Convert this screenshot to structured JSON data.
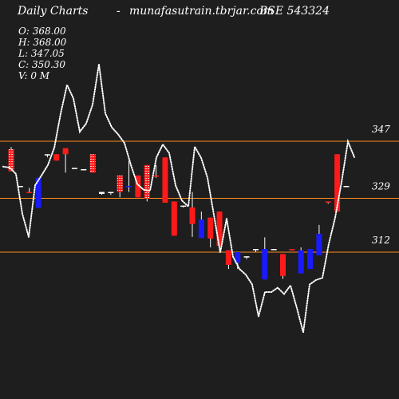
{
  "header": {
    "title": "Daily Charts",
    "dash": "-",
    "site": "munafasutrain.tbrjar.com",
    "symbol": "BSE 543324"
  },
  "ohlc": {
    "open": "O: 368.00",
    "high": "H: 368.00",
    "low": "L: 347.05",
    "close": "C: 350.30",
    "volume": "V: 0  M"
  },
  "colors": {
    "background": "#1e1e1e",
    "level_line": "#ff8c1a",
    "up_candle": "#1a1aff",
    "down_candle": "#ff1a1a",
    "neutral_candle": "#ffffff",
    "overlay_line": "#ffffff"
  },
  "chart_data": {
    "type": "candlestick",
    "levels": [
      {
        "value": 347,
        "label": "347"
      },
      {
        "value": 329,
        "label": "329"
      },
      {
        "value": 312,
        "label": "312"
      }
    ],
    "candles": [
      {
        "o": 344.5,
        "h": 345.2,
        "l": 337.6,
        "c": 337.6,
        "color": "down",
        "hatched": true
      },
      {
        "o": 332.9,
        "h": 332.9,
        "l": 332.9,
        "c": 332.9,
        "color": "neutral"
      },
      {
        "o": 331.0,
        "h": 332.3,
        "l": 330.7,
        "c": 330.7,
        "color": "down"
      },
      {
        "o": 335.5,
        "h": 335.5,
        "l": 326.0,
        "c": 326.0,
        "color": "up"
      },
      {
        "o": 342.9,
        "h": 342.9,
        "l": 341.9,
        "c": 342.9,
        "color": "neutral"
      },
      {
        "o": 342.9,
        "h": 342.9,
        "l": 340.9,
        "c": 340.9,
        "color": "down"
      },
      {
        "o": 344.8,
        "h": 344.8,
        "l": 337.1,
        "c": 342.9,
        "color": "down"
      },
      {
        "o": 338.6,
        "h": 338.6,
        "l": 338.6,
        "c": 338.6,
        "color": "neutral"
      },
      {
        "o": 338.2,
        "h": 338.2,
        "l": 338.2,
        "c": 338.2,
        "color": "neutral"
      },
      {
        "o": 342.9,
        "h": 342.9,
        "l": 337.1,
        "c": 337.1,
        "color": "down",
        "hatched": true
      },
      {
        "o": 331.0,
        "h": 331.0,
        "l": 330.1,
        "c": 330.4,
        "color": "neutral"
      },
      {
        "o": 331.0,
        "h": 331.0,
        "l": 330.1,
        "c": 331.0,
        "color": "neutral"
      },
      {
        "o": 336.2,
        "h": 336.2,
        "l": 329.3,
        "c": 331.0,
        "color": "down",
        "hatched": true
      },
      {
        "o": 332.9,
        "h": 340.9,
        "l": 331.0,
        "c": 332.9,
        "color": "up"
      },
      {
        "o": 336.2,
        "h": 336.2,
        "l": 329.3,
        "c": 329.3,
        "color": "down"
      },
      {
        "o": 339.5,
        "h": 339.5,
        "l": 328.0,
        "c": 328.9,
        "color": "down",
        "hatched": true
      },
      {
        "o": 336.2,
        "h": 339.5,
        "l": 335.5,
        "c": 336.2,
        "color": "down"
      },
      {
        "o": 341.9,
        "h": 341.9,
        "l": 327.6,
        "c": 327.6,
        "color": "down"
      },
      {
        "o": 328.0,
        "h": 328.0,
        "l": 317.2,
        "c": 317.2,
        "color": "down"
      },
      {
        "o": 326.7,
        "h": 326.7,
        "l": 326.1,
        "c": 326.7,
        "color": "neutral"
      },
      {
        "o": 326.1,
        "h": 331.0,
        "l": 316.8,
        "c": 320.9,
        "color": "down"
      },
      {
        "o": 316.5,
        "h": 324.8,
        "l": 316.5,
        "c": 322.3,
        "color": "up"
      },
      {
        "o": 322.9,
        "h": 322.9,
        "l": 313.5,
        "c": 316.3,
        "color": "down"
      },
      {
        "o": 324.8,
        "h": 324.8,
        "l": 314.0,
        "c": 314.0,
        "color": "down"
      },
      {
        "o": 312.6,
        "h": 312.6,
        "l": 306.7,
        "c": 308.0,
        "color": "down"
      },
      {
        "o": 308.6,
        "h": 312.0,
        "l": 306.7,
        "c": 312.0,
        "color": "up"
      },
      {
        "o": 310.7,
        "h": 310.7,
        "l": 309.8,
        "c": 310.5,
        "color": "neutral"
      },
      {
        "o": 313.0,
        "h": 313.0,
        "l": 312.0,
        "c": 313.0,
        "color": "neutral"
      },
      {
        "o": 303.4,
        "h": 316.7,
        "l": 303.4,
        "c": 313.0,
        "color": "up"
      },
      {
        "o": 313.0,
        "h": 313.0,
        "l": 313.0,
        "c": 313.0,
        "color": "neutral"
      },
      {
        "o": 311.4,
        "h": 311.4,
        "l": 303.6,
        "c": 304.5,
        "color": "down"
      },
      {
        "o": 313.0,
        "h": 313.0,
        "l": 312.6,
        "c": 312.6,
        "color": "down"
      },
      {
        "o": 305.3,
        "h": 313.5,
        "l": 305.3,
        "c": 312.6,
        "color": "up"
      },
      {
        "o": 306.7,
        "h": 313.0,
        "l": 306.7,
        "c": 313.0,
        "color": "up"
      },
      {
        "o": 311.0,
        "h": 320.6,
        "l": 311.0,
        "c": 317.8,
        "color": "up"
      },
      {
        "o": 328.0,
        "h": 328.0,
        "l": 327.3,
        "c": 328.0,
        "color": "down"
      },
      {
        "o": 342.9,
        "h": 342.9,
        "l": 324.8,
        "c": 324.8,
        "color": "down"
      },
      {
        "o": 332.9,
        "h": 332.9,
        "l": 332.9,
        "c": 332.9,
        "color": "neutral"
      }
    ],
    "overlay_line": [
      339.0,
      338.7,
      336.7,
      324.1,
      316.8,
      333.1,
      336.2,
      339.5,
      344.9,
      355.7,
      364.8,
      360.5,
      350.0,
      352.6,
      358.5,
      371.3,
      355.8,
      351.4,
      349.2,
      346.4,
      339.5,
      333.5,
      331.7,
      331.4,
      341.9,
      346.0,
      343.3,
      333.1,
      328.3,
      326.4,
      345.3,
      341.8,
      335.5,
      323.8,
      311.9,
      322.6,
      310.6,
      306.7,
      304.9,
      301.8,
      291.7,
      299.4,
      299.4,
      300.8,
      298.8,
      301.5,
      294.4,
      286.7,
      301.8,
      303.2,
      303.9,
      314.6,
      322.9,
      334.1,
      346.9,
      342.0
    ]
  }
}
